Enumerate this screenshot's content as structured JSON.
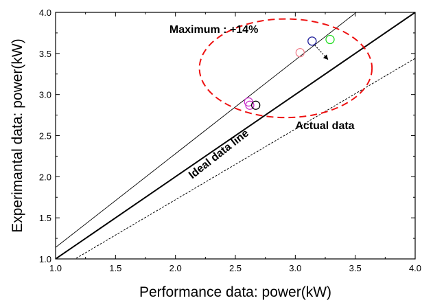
{
  "chart_data": {
    "type": "scatter",
    "title": "",
    "xlabel": "Performance data: power(kW)",
    "ylabel": "Experimantal data: power(kW)",
    "xlim": [
      1.0,
      4.0
    ],
    "ylim": [
      1.0,
      4.0
    ],
    "xticks": [
      "1.0",
      "1.5",
      "2.0",
      "2.5",
      "3.0",
      "3.5",
      "4.0"
    ],
    "yticks": [
      "1.0",
      "1.5",
      "2.0",
      "2.5",
      "3.0",
      "3.5",
      "4.0"
    ],
    "grid": false,
    "points": [
      {
        "x": 2.61,
        "y": 2.91,
        "color": "#cc33cc"
      },
      {
        "x": 2.62,
        "y": 2.87,
        "color": "#cc33cc"
      },
      {
        "x": 2.67,
        "y": 2.87,
        "color": "#000000"
      },
      {
        "x": 3.04,
        "y": 3.51,
        "color": "#f07f8c"
      },
      {
        "x": 3.14,
        "y": 3.65,
        "color": "#1a1a99"
      },
      {
        "x": 3.29,
        "y": 3.67,
        "color": "#22dd22"
      }
    ],
    "lines": [
      {
        "name": "ideal",
        "style": "solid-thick",
        "color": "#000000",
        "slope": 1.0,
        "intercept": 0.0
      },
      {
        "name": "upper",
        "style": "solid-thin",
        "color": "#000000",
        "slope": 1.14,
        "intercept": 0.0
      },
      {
        "name": "lower",
        "style": "dashed",
        "color": "#000000",
        "slope": 0.86,
        "intercept": 0.0
      }
    ],
    "ellipse": {
      "cx": 2.92,
      "cy": 3.32,
      "rx": 0.72,
      "ry": 0.6,
      "color": "#ee1111",
      "style": "dashed"
    },
    "arrow": {
      "from": [
        3.14,
        3.65
      ],
      "to": [
        3.27,
        3.43
      ]
    },
    "annotations": [
      {
        "key": "maximum",
        "text": "Maximum : +14%",
        "x": 1.95,
        "y": 3.75
      },
      {
        "key": "actual",
        "text": "Actual data",
        "x": 3.0,
        "y": 2.58
      },
      {
        "key": "ideal",
        "text": "Ideal data line",
        "x": 2.14,
        "y": 1.97,
        "rotate": -38
      }
    ]
  }
}
